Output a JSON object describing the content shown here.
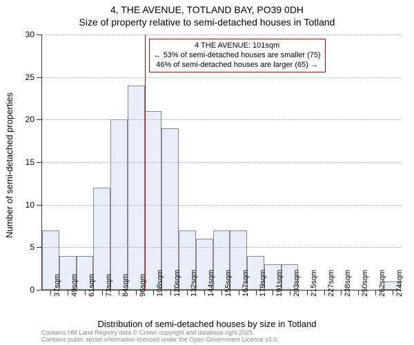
{
  "chart": {
    "type": "histogram",
    "title_main": "4, THE AVENUE, TOTLAND BAY, PO39 0DH",
    "title_sub": "Size of property relative to semi-detached houses in Totland",
    "ylabel": "Number of semi-detached properties",
    "xlabel": "Distribution of semi-detached houses by size in Totland",
    "background_color": "#ffffff",
    "bar_fill": "#e8eef7",
    "bar_border": "#888888",
    "grid_color": "#aaaaaa",
    "axis_color": "#333333",
    "marker_color": "#cc0000",
    "title_fontsize": 14,
    "label_fontsize": 13,
    "tick_fontsize": 12,
    "xtick_fontsize": 11,
    "ylim": [
      0,
      30
    ],
    "ytick_step": 5,
    "yticks": [
      0,
      5,
      10,
      15,
      20,
      25,
      30
    ],
    "x_categories": [
      "37sqm",
      "49sqm",
      "61sqm",
      "73sqm",
      "84sqm",
      "96sqm",
      "108sqm",
      "120sqm",
      "132sqm",
      "144sqm",
      "155sqm",
      "167sqm",
      "179sqm",
      "191sqm",
      "203sqm",
      "215sqm",
      "227sqm",
      "238sqm",
      "250sqm",
      "262sqm",
      "274sqm"
    ],
    "values": [
      7,
      4,
      4,
      12,
      20,
      24,
      21,
      19,
      7,
      6,
      7,
      7,
      4,
      3,
      3,
      0,
      0,
      0,
      0,
      0,
      1
    ],
    "marker_category_index": 5.5,
    "annotation": {
      "line1": "4 THE AVENUE: 101sqm",
      "line2": "← 53% of semi-detached houses are smaller (75)",
      "line3": "46% of semi-detached houses are larger (65) →"
    },
    "credits": {
      "line1": "Contains HM Land Registry data © Crown copyright and database right 2025.",
      "line2": "Contains public sector information licensed under the Open Government Licence v3.0."
    }
  }
}
